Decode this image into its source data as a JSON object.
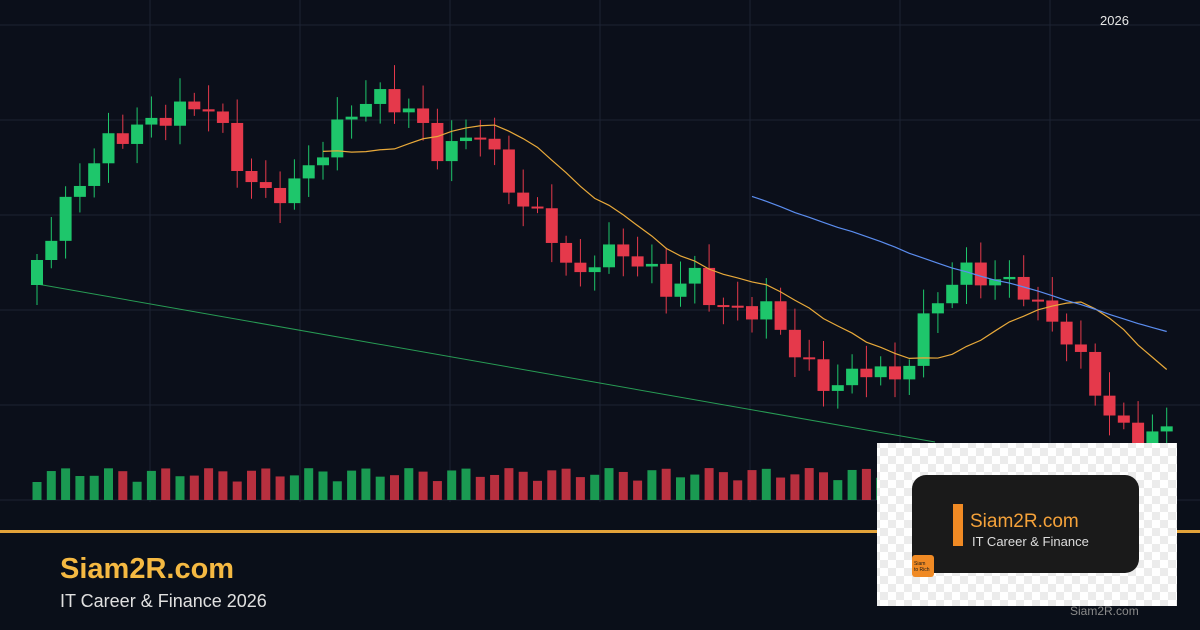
{
  "header": {
    "year": "2026"
  },
  "brand": {
    "name": "Siam2R.com",
    "tagline": "IT Career & Finance 2026"
  },
  "logo": {
    "name": "Siam2R.com",
    "tagline": "IT Career & Finance",
    "icon_text": [
      "Siam",
      "to Rich"
    ]
  },
  "watermark": "Siam2R.com"
}
